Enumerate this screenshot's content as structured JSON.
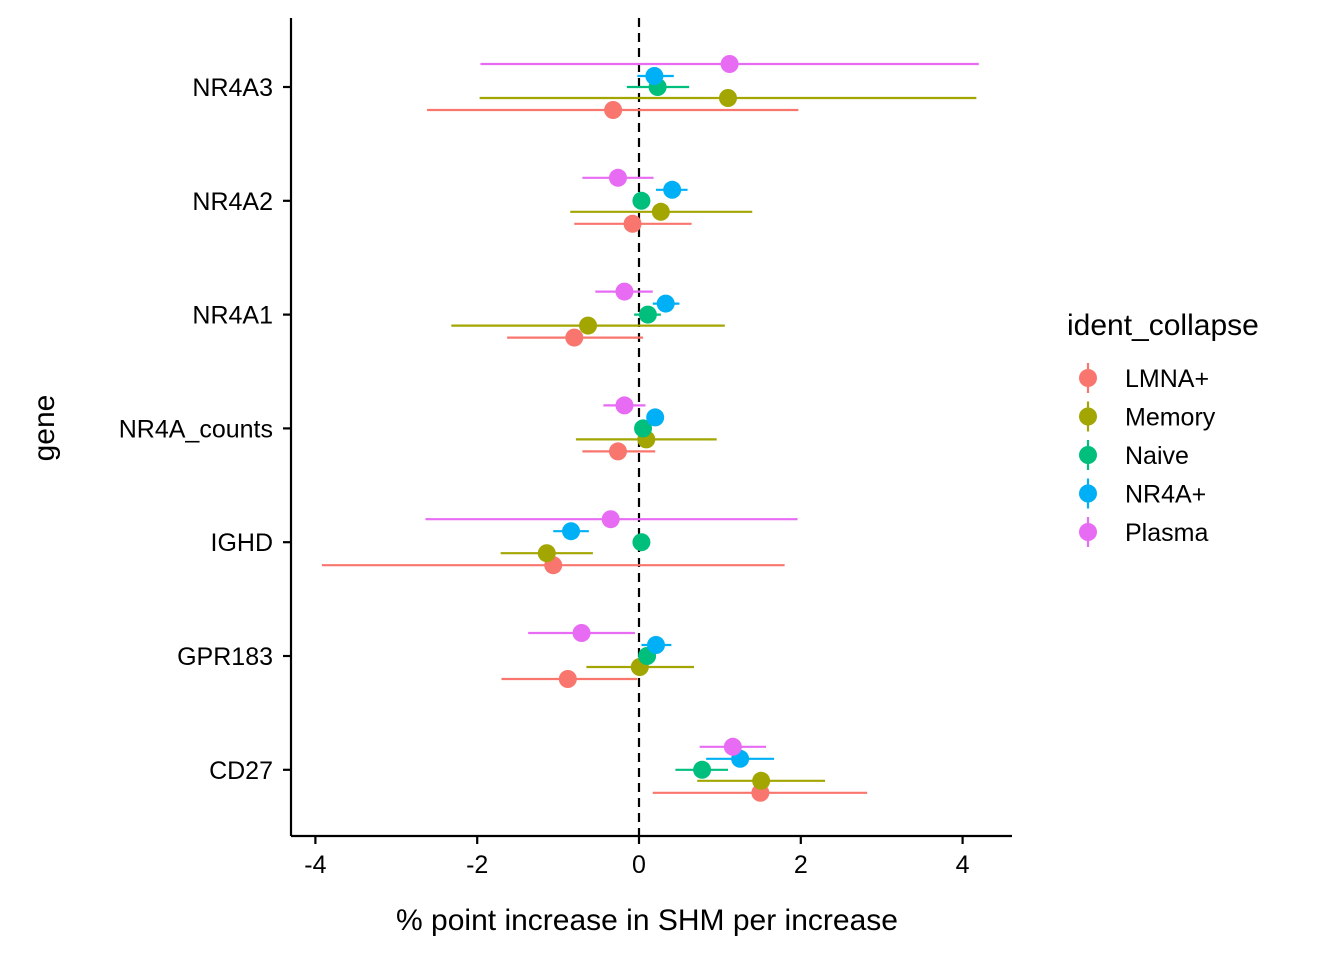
{
  "chart_data": {
    "type": "scatter",
    "subtype": "point-range",
    "title": "",
    "xlabel": "% point increase in SHM per increase",
    "ylabel": "gene",
    "xlim": [
      -4.3,
      4.6
    ],
    "x_ticks": [
      -4,
      -2,
      0,
      2,
      4
    ],
    "x_tick_labels": [
      "-4",
      "-2",
      "0",
      "2",
      "4"
    ],
    "reference_line_x": 0,
    "categories": [
      "NR4A3",
      "NR4A2",
      "NR4A1",
      "NR4A_counts",
      "IGHD",
      "GPR183",
      "CD27"
    ],
    "legend_title": "ident_collapse",
    "legend_position": "right",
    "grid": false,
    "series": [
      {
        "name": "LMNA+",
        "color": "#F8766D",
        "points": [
          {
            "gene": "NR4A3",
            "x": -0.32,
            "lo": -2.62,
            "hi": 1.97
          },
          {
            "gene": "NR4A2",
            "x": -0.08,
            "lo": -0.8,
            "hi": 0.65
          },
          {
            "gene": "NR4A1",
            "x": -0.8,
            "lo": -1.63,
            "hi": 0.05
          },
          {
            "gene": "NR4A_counts",
            "x": -0.26,
            "lo": -0.7,
            "hi": 0.2
          },
          {
            "gene": "IGHD",
            "x": -1.06,
            "lo": -3.92,
            "hi": 1.8
          },
          {
            "gene": "GPR183",
            "x": -0.88,
            "lo": -1.7,
            "hi": -0.02
          },
          {
            "gene": "CD27",
            "x": 1.5,
            "lo": 0.17,
            "hi": 2.82
          }
        ]
      },
      {
        "name": "Memory",
        "color": "#A3A500",
        "points": [
          {
            "gene": "NR4A3",
            "x": 1.1,
            "lo": -1.97,
            "hi": 4.17
          },
          {
            "gene": "NR4A2",
            "x": 0.27,
            "lo": -0.85,
            "hi": 1.4
          },
          {
            "gene": "NR4A1",
            "x": -0.63,
            "lo": -2.32,
            "hi": 1.06
          },
          {
            "gene": "NR4A_counts",
            "x": 0.09,
            "lo": -0.78,
            "hi": 0.96
          },
          {
            "gene": "IGHD",
            "x": -1.14,
            "lo": -1.71,
            "hi": -0.57
          },
          {
            "gene": "GPR183",
            "x": 0.01,
            "lo": -0.65,
            "hi": 0.68
          },
          {
            "gene": "CD27",
            "x": 1.51,
            "lo": 0.72,
            "hi": 2.3
          }
        ]
      },
      {
        "name": "Naive",
        "color": "#00BF7D",
        "points": [
          {
            "gene": "NR4A3",
            "x": 0.23,
            "lo": -0.15,
            "hi": 0.62
          },
          {
            "gene": "NR4A2",
            "x": 0.03,
            "lo": -0.04,
            "hi": 0.1
          },
          {
            "gene": "NR4A1",
            "x": 0.11,
            "lo": -0.06,
            "hi": 0.27
          },
          {
            "gene": "NR4A_counts",
            "x": 0.05,
            "lo": -0.04,
            "hi": 0.14
          },
          {
            "gene": "IGHD",
            "x": 0.03,
            "lo": -0.02,
            "hi": 0.08
          },
          {
            "gene": "GPR183",
            "x": 0.1,
            "lo": 0.03,
            "hi": 0.17
          },
          {
            "gene": "CD27",
            "x": 0.78,
            "lo": 0.45,
            "hi": 1.1
          }
        ]
      },
      {
        "name": "NR4A+",
        "color": "#00B0F6",
        "points": [
          {
            "gene": "NR4A3",
            "x": 0.19,
            "lo": -0.02,
            "hi": 0.43
          },
          {
            "gene": "NR4A2",
            "x": 0.41,
            "lo": 0.21,
            "hi": 0.6
          },
          {
            "gene": "NR4A1",
            "x": 0.33,
            "lo": 0.17,
            "hi": 0.5
          },
          {
            "gene": "NR4A_counts",
            "x": 0.2,
            "lo": 0.11,
            "hi": 0.29
          },
          {
            "gene": "IGHD",
            "x": -0.84,
            "lo": -1.06,
            "hi": -0.62
          },
          {
            "gene": "GPR183",
            "x": 0.21,
            "lo": 0.03,
            "hi": 0.4
          },
          {
            "gene": "CD27",
            "x": 1.25,
            "lo": 0.83,
            "hi": 1.67
          }
        ]
      },
      {
        "name": "Plasma",
        "color": "#E76BF3",
        "points": [
          {
            "gene": "NR4A3",
            "x": 1.12,
            "lo": -1.96,
            "hi": 4.2
          },
          {
            "gene": "NR4A2",
            "x": -0.26,
            "lo": -0.7,
            "hi": 0.18
          },
          {
            "gene": "NR4A1",
            "x": -0.18,
            "lo": -0.54,
            "hi": 0.17
          },
          {
            "gene": "NR4A_counts",
            "x": -0.18,
            "lo": -0.44,
            "hi": 0.08
          },
          {
            "gene": "IGHD",
            "x": -0.35,
            "lo": -2.64,
            "hi": 1.96
          },
          {
            "gene": "GPR183",
            "x": -0.71,
            "lo": -1.37,
            "hi": -0.05
          },
          {
            "gene": "CD27",
            "x": 1.16,
            "lo": 0.75,
            "hi": 1.57
          }
        ]
      }
    ]
  }
}
